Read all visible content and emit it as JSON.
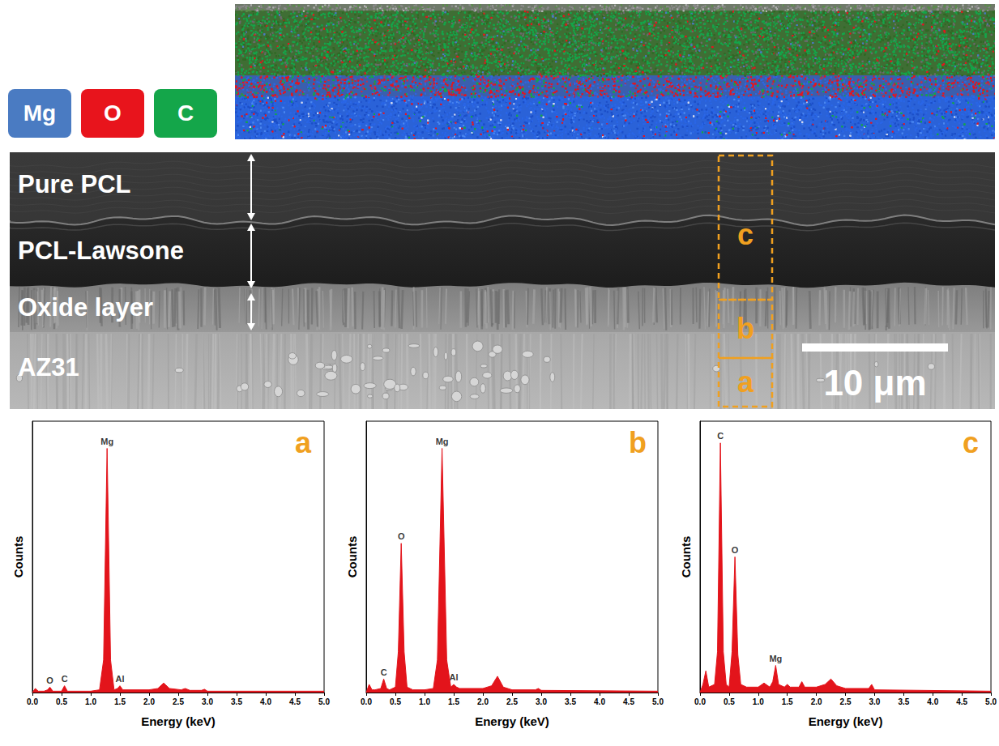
{
  "element_map": {
    "keys": [
      {
        "label": "Mg",
        "color": "#4a7bc2"
      },
      {
        "label": "O",
        "color": "#e8141c"
      },
      {
        "label": "C",
        "color": "#14a64a"
      }
    ]
  },
  "micrograph": {
    "layers": [
      "Pure PCL",
      "PCL-Lawsone",
      "Oxide layer",
      "AZ31"
    ],
    "regions": [
      "c",
      "b",
      "a"
    ],
    "scale_bar": "10 μm"
  },
  "chart_data": [
    {
      "type": "area",
      "panel": "a",
      "color": "#e3141b",
      "xlabel": "Energy (keV)",
      "ylabel": "Counts",
      "x": [
        0,
        0.05,
        0.1,
        0.2,
        0.26,
        0.3,
        0.35,
        0.5,
        0.55,
        0.6,
        1.0,
        1.15,
        1.22,
        1.28,
        1.34,
        1.4,
        1.46,
        1.5,
        1.55,
        2.0,
        2.15,
        2.25,
        2.35,
        2.55,
        2.62,
        2.7,
        2.9,
        2.95,
        3.0,
        5.0
      ],
      "values": [
        0,
        1.5,
        0.5,
        0.5,
        1,
        2,
        0.5,
        0.5,
        2.5,
        0.5,
        0.5,
        1,
        12,
        90,
        12,
        1,
        1.5,
        2.5,
        1,
        1,
        1.5,
        3.5,
        1.5,
        1,
        1.5,
        0.8,
        0.8,
        1.2,
        0.5,
        0.5
      ],
      "xlim": [
        0,
        5
      ],
      "xticks": [
        {
          "value": 0,
          "label": "0.0"
        },
        0.5,
        {
          "value": 1,
          "label": "1.0"
        },
        1.5,
        {
          "value": 2,
          "label": "2.0"
        },
        2.5,
        {
          "value": 3,
          "label": "3.0"
        },
        3.5,
        {
          "value": 4,
          "label": "4.0"
        },
        4.5,
        {
          "value": 5,
          "label": "5.0"
        }
      ],
      "ylim": [
        0,
        100
      ],
      "tick_labels": "x",
      "annotations": [
        {
          "text": "O",
          "x": 0.3,
          "y": 2
        },
        {
          "text": "C",
          "x": 0.55,
          "y": 2.5
        },
        {
          "text": "Mg",
          "x": 1.28,
          "y": 90
        },
        {
          "text": "Al",
          "x": 1.5,
          "y": 2.5
        }
      ]
    },
    {
      "type": "area",
      "panel": "b",
      "color": "#e3141b",
      "xlabel": "Energy (keV)",
      "ylabel": "Counts",
      "x": [
        0,
        0.05,
        0.1,
        0.15,
        0.25,
        0.3,
        0.35,
        0.4,
        0.5,
        0.55,
        0.6,
        0.65,
        0.7,
        0.8,
        1.0,
        1.15,
        1.22,
        1.3,
        1.38,
        1.45,
        1.5,
        1.55,
        1.6,
        2.0,
        2.15,
        2.25,
        2.35,
        2.5,
        2.9,
        2.95,
        3.0,
        5.0
      ],
      "values": [
        0,
        3,
        1,
        1,
        1.5,
        5,
        1.5,
        1,
        2,
        15,
        55,
        15,
        2,
        1,
        1,
        1.5,
        12,
        90,
        12,
        2,
        3,
        2,
        1.5,
        1.5,
        2.5,
        6,
        2,
        1,
        1,
        1.5,
        0.8,
        0.5
      ],
      "xlim": [
        0,
        5
      ],
      "xticks": [
        {
          "value": 0,
          "label": "0.0"
        },
        0.5,
        {
          "value": 1,
          "label": "1.0"
        },
        1.5,
        {
          "value": 2,
          "label": "2.0"
        },
        2.5,
        {
          "value": 3,
          "label": "3.0"
        },
        3.5,
        {
          "value": 4,
          "label": "4.0"
        },
        4.5,
        {
          "value": 5,
          "label": "5.0"
        }
      ],
      "ylim": [
        0,
        100
      ],
      "tick_labels": "x",
      "annotations": [
        {
          "text": "C",
          "x": 0.3,
          "y": 5
        },
        {
          "text": "O",
          "x": 0.6,
          "y": 55
        },
        {
          "text": "Mg",
          "x": 1.3,
          "y": 90
        },
        {
          "text": "Al",
          "x": 1.5,
          "y": 3
        }
      ]
    },
    {
      "type": "area",
      "panel": "c",
      "color": "#e3141b",
      "xlabel": "Energy (keV)",
      "ylabel": "Counts",
      "x": [
        0,
        0.05,
        0.1,
        0.15,
        0.25,
        0.3,
        0.35,
        0.4,
        0.45,
        0.5,
        0.55,
        0.6,
        0.65,
        0.7,
        0.8,
        1.0,
        1.1,
        1.2,
        1.25,
        1.3,
        1.35,
        1.45,
        1.5,
        1.55,
        1.7,
        1.75,
        1.8,
        2.0,
        2.15,
        2.25,
        2.35,
        2.5,
        2.9,
        2.95,
        3.0,
        5.0
      ],
      "values": [
        0,
        3,
        8,
        2,
        3,
        15,
        92,
        15,
        3,
        2,
        15,
        50,
        14,
        3,
        2,
        2,
        3.5,
        2,
        4,
        10,
        3,
        2,
        3,
        2,
        2,
        4,
        2,
        2,
        3,
        5,
        2.5,
        1.5,
        1.5,
        3,
        1,
        0.5
      ],
      "xlim": [
        0,
        5
      ],
      "xticks": [
        {
          "value": 0,
          "label": "0.0"
        },
        0.5,
        {
          "value": 1,
          "label": "1.0"
        },
        1.5,
        {
          "value": 2,
          "label": "2.0"
        },
        2.5,
        {
          "value": 3,
          "label": "3.0"
        },
        3.5,
        {
          "value": 4,
          "label": "4.0"
        },
        4.5,
        {
          "value": 5,
          "label": "5.0"
        }
      ],
      "ylim": [
        0,
        100
      ],
      "tick_labels": "x",
      "annotations": [
        {
          "text": "C",
          "x": 0.35,
          "y": 92
        },
        {
          "text": "O",
          "x": 0.6,
          "y": 50
        },
        {
          "text": "Mg",
          "x": 1.3,
          "y": 10
        }
      ]
    }
  ]
}
